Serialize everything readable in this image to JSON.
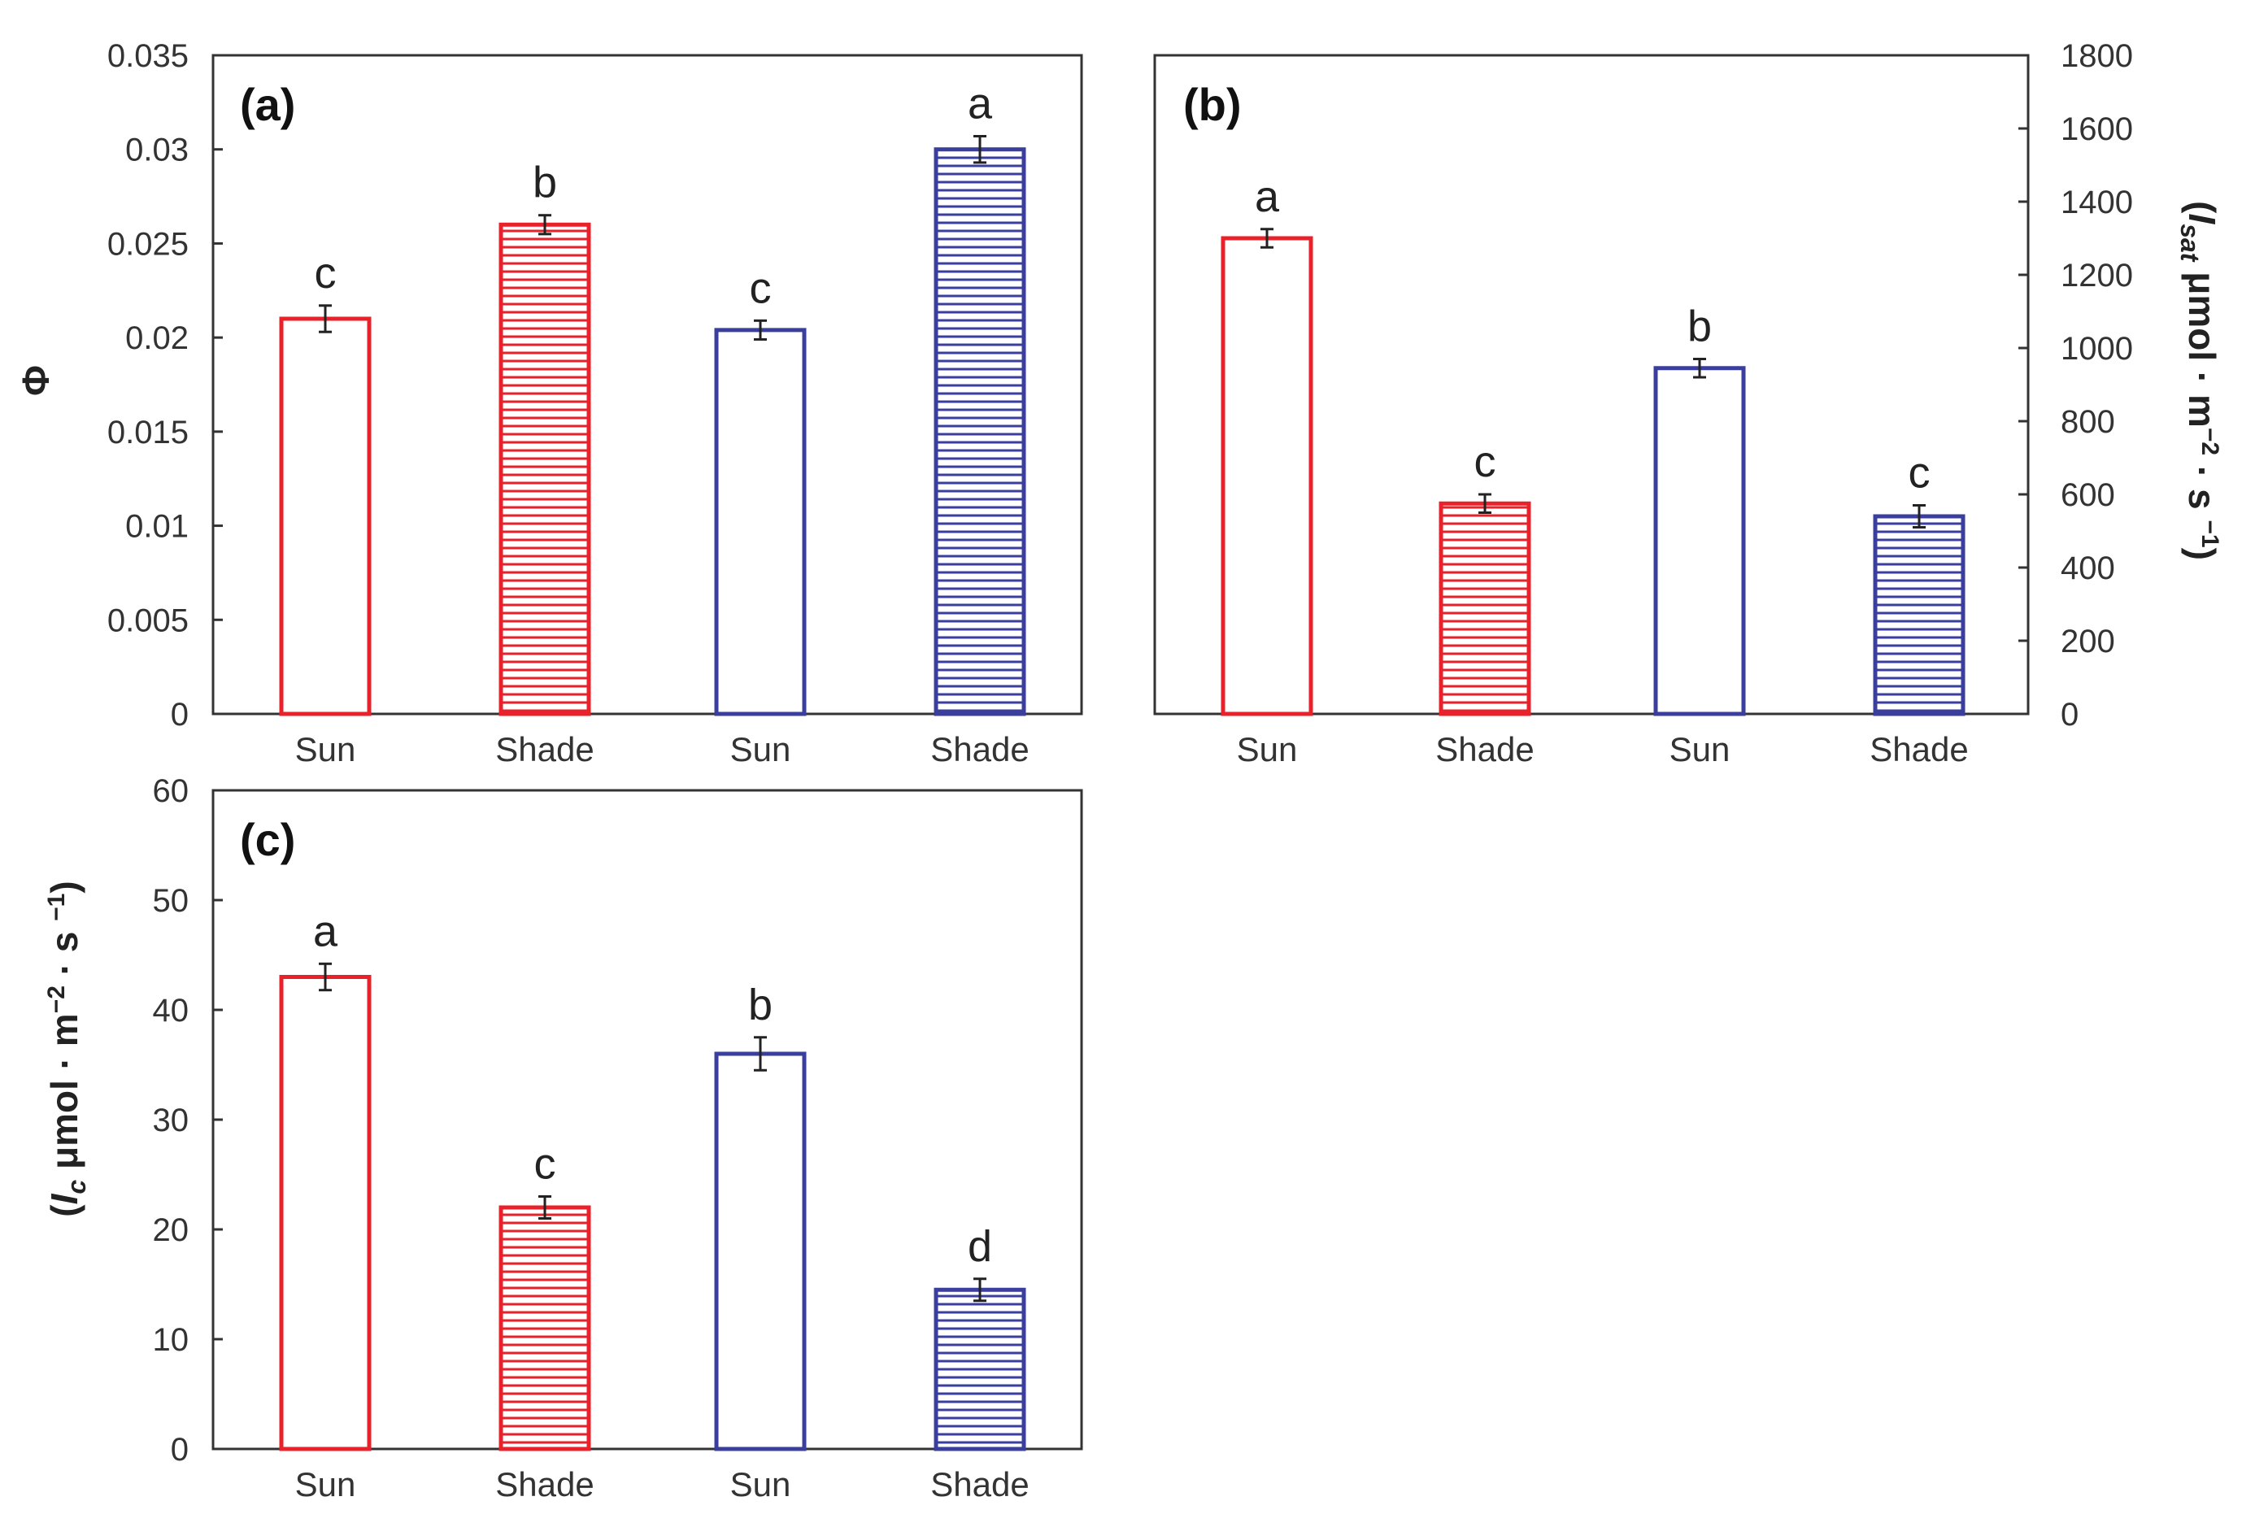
{
  "chart_data": [
    {
      "panel": "(a)",
      "type": "bar",
      "categories": [
        "Sun",
        "Shade",
        "Sun",
        "Shade"
      ],
      "values": [
        0.021,
        0.026,
        0.0204,
        0.03
      ],
      "errors": [
        0.0007,
        0.0005,
        0.0005,
        0.0007
      ],
      "significance": [
        "c",
        "b",
        "c",
        "a"
      ],
      "colors": [
        "#e8212a",
        "#e8212a",
        "#3a3f9e",
        "#3a3f9e"
      ],
      "hatched": [
        false,
        true,
        false,
        true
      ],
      "ylabel": "Φ",
      "ylim": [
        0,
        0.035
      ],
      "yticks": [
        0,
        0.005,
        0.01,
        0.015,
        0.02,
        0.025,
        0.03,
        0.035
      ],
      "ytick_labels": [
        "0",
        "0.005",
        "0.01",
        "0.015",
        "0.02",
        "0.025",
        "0.03",
        "0.035"
      ],
      "yaxis_side": "left"
    },
    {
      "panel": "(b)",
      "type": "bar",
      "categories": [
        "Sun",
        "Shade",
        "Sun",
        "Shade"
      ],
      "values": [
        1300,
        575,
        945,
        540
      ],
      "errors": [
        25,
        25,
        25,
        30
      ],
      "significance": [
        "a",
        "c",
        "b",
        "c"
      ],
      "colors": [
        "#e8212a",
        "#e8212a",
        "#3a3f9e",
        "#3a3f9e"
      ],
      "hatched": [
        false,
        true,
        false,
        true
      ],
      "ylabel": "(I_sat μmol · m−2 · s −1)",
      "ylim": [
        0,
        1800
      ],
      "yticks": [
        0,
        200,
        400,
        600,
        800,
        1000,
        1200,
        1400,
        1600,
        1800
      ],
      "ytick_labels": [
        "0",
        "200",
        "400",
        "600",
        "800",
        "1000",
        "1200",
        "1400",
        "1600",
        "1800"
      ],
      "yaxis_side": "right"
    },
    {
      "panel": "(c)",
      "type": "bar",
      "categories": [
        "Sun",
        "Shade",
        "Sun",
        "Shade"
      ],
      "values": [
        43,
        22,
        36,
        14.5
      ],
      "errors": [
        1.2,
        1.0,
        1.5,
        1.0
      ],
      "significance": [
        "a",
        "c",
        "b",
        "d"
      ],
      "colors": [
        "#e8212a",
        "#e8212a",
        "#3a3f9e",
        "#3a3f9e"
      ],
      "hatched": [
        false,
        true,
        false,
        true
      ],
      "ylabel": "(I_c μmol · m−2 · s −1)",
      "ylim": [
        0,
        60
      ],
      "yticks": [
        0,
        10,
        20,
        30,
        40,
        50,
        60
      ],
      "ytick_labels": [
        "0",
        "10",
        "20",
        "30",
        "40",
        "50",
        "60"
      ],
      "yaxis_side": "left"
    }
  ],
  "axis_title_parts": {
    "a": {
      "symbol": "Φ"
    },
    "b": {
      "open": "(",
      "var": "I",
      "sub": "sat",
      "unit": " μmol · m",
      "exp1": "−2",
      "mid": " · s ",
      "exp2": "−1",
      "close": ")"
    },
    "c": {
      "open": "(",
      "var": "I",
      "sub": "c",
      "unit": " μmol · m",
      "exp1": "−2",
      "mid": " · s ",
      "exp2": "−1",
      "close": ")"
    }
  }
}
